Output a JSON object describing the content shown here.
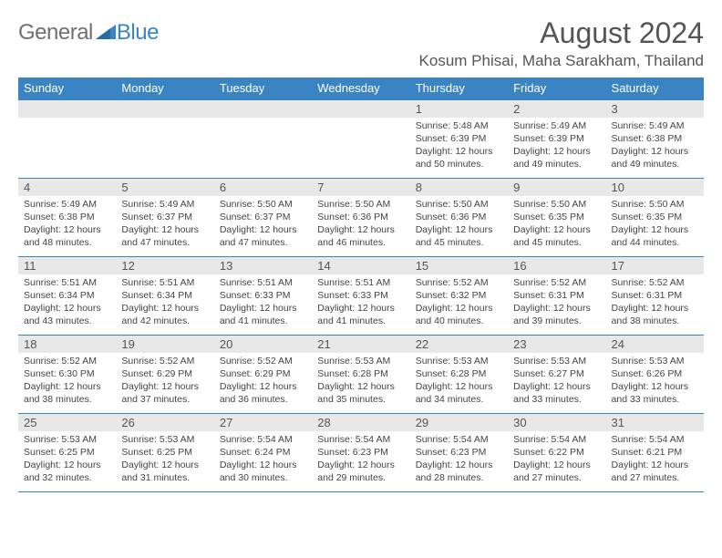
{
  "logo": {
    "text1": "General",
    "text2": "Blue",
    "color_general": "#707070",
    "color_blue": "#3b84c4"
  },
  "header": {
    "month_title": "August 2024",
    "location": "Kosum Phisai, Maha Sarakham, Thailand"
  },
  "style": {
    "header_bg": "#3b84c4",
    "header_fg": "#ffffff",
    "daynum_bg": "#e8e8e8",
    "border_color": "#3b84c4",
    "text_color": "#444444"
  },
  "daynames": [
    "Sunday",
    "Monday",
    "Tuesday",
    "Wednesday",
    "Thursday",
    "Friday",
    "Saturday"
  ],
  "weeks": [
    [
      {
        "n": "",
        "t": ""
      },
      {
        "n": "",
        "t": ""
      },
      {
        "n": "",
        "t": ""
      },
      {
        "n": "",
        "t": ""
      },
      {
        "n": "1",
        "t": "Sunrise: 5:48 AM\nSunset: 6:39 PM\nDaylight: 12 hours and 50 minutes."
      },
      {
        "n": "2",
        "t": "Sunrise: 5:49 AM\nSunset: 6:39 PM\nDaylight: 12 hours and 49 minutes."
      },
      {
        "n": "3",
        "t": "Sunrise: 5:49 AM\nSunset: 6:38 PM\nDaylight: 12 hours and 49 minutes."
      }
    ],
    [
      {
        "n": "4",
        "t": "Sunrise: 5:49 AM\nSunset: 6:38 PM\nDaylight: 12 hours and 48 minutes."
      },
      {
        "n": "5",
        "t": "Sunrise: 5:49 AM\nSunset: 6:37 PM\nDaylight: 12 hours and 47 minutes."
      },
      {
        "n": "6",
        "t": "Sunrise: 5:50 AM\nSunset: 6:37 PM\nDaylight: 12 hours and 47 minutes."
      },
      {
        "n": "7",
        "t": "Sunrise: 5:50 AM\nSunset: 6:36 PM\nDaylight: 12 hours and 46 minutes."
      },
      {
        "n": "8",
        "t": "Sunrise: 5:50 AM\nSunset: 6:36 PM\nDaylight: 12 hours and 45 minutes."
      },
      {
        "n": "9",
        "t": "Sunrise: 5:50 AM\nSunset: 6:35 PM\nDaylight: 12 hours and 45 minutes."
      },
      {
        "n": "10",
        "t": "Sunrise: 5:50 AM\nSunset: 6:35 PM\nDaylight: 12 hours and 44 minutes."
      }
    ],
    [
      {
        "n": "11",
        "t": "Sunrise: 5:51 AM\nSunset: 6:34 PM\nDaylight: 12 hours and 43 minutes."
      },
      {
        "n": "12",
        "t": "Sunrise: 5:51 AM\nSunset: 6:34 PM\nDaylight: 12 hours and 42 minutes."
      },
      {
        "n": "13",
        "t": "Sunrise: 5:51 AM\nSunset: 6:33 PM\nDaylight: 12 hours and 41 minutes."
      },
      {
        "n": "14",
        "t": "Sunrise: 5:51 AM\nSunset: 6:33 PM\nDaylight: 12 hours and 41 minutes."
      },
      {
        "n": "15",
        "t": "Sunrise: 5:52 AM\nSunset: 6:32 PM\nDaylight: 12 hours and 40 minutes."
      },
      {
        "n": "16",
        "t": "Sunrise: 5:52 AM\nSunset: 6:31 PM\nDaylight: 12 hours and 39 minutes."
      },
      {
        "n": "17",
        "t": "Sunrise: 5:52 AM\nSunset: 6:31 PM\nDaylight: 12 hours and 38 minutes."
      }
    ],
    [
      {
        "n": "18",
        "t": "Sunrise: 5:52 AM\nSunset: 6:30 PM\nDaylight: 12 hours and 38 minutes."
      },
      {
        "n": "19",
        "t": "Sunrise: 5:52 AM\nSunset: 6:29 PM\nDaylight: 12 hours and 37 minutes."
      },
      {
        "n": "20",
        "t": "Sunrise: 5:52 AM\nSunset: 6:29 PM\nDaylight: 12 hours and 36 minutes."
      },
      {
        "n": "21",
        "t": "Sunrise: 5:53 AM\nSunset: 6:28 PM\nDaylight: 12 hours and 35 minutes."
      },
      {
        "n": "22",
        "t": "Sunrise: 5:53 AM\nSunset: 6:28 PM\nDaylight: 12 hours and 34 minutes."
      },
      {
        "n": "23",
        "t": "Sunrise: 5:53 AM\nSunset: 6:27 PM\nDaylight: 12 hours and 33 minutes."
      },
      {
        "n": "24",
        "t": "Sunrise: 5:53 AM\nSunset: 6:26 PM\nDaylight: 12 hours and 33 minutes."
      }
    ],
    [
      {
        "n": "25",
        "t": "Sunrise: 5:53 AM\nSunset: 6:25 PM\nDaylight: 12 hours and 32 minutes."
      },
      {
        "n": "26",
        "t": "Sunrise: 5:53 AM\nSunset: 6:25 PM\nDaylight: 12 hours and 31 minutes."
      },
      {
        "n": "27",
        "t": "Sunrise: 5:54 AM\nSunset: 6:24 PM\nDaylight: 12 hours and 30 minutes."
      },
      {
        "n": "28",
        "t": "Sunrise: 5:54 AM\nSunset: 6:23 PM\nDaylight: 12 hours and 29 minutes."
      },
      {
        "n": "29",
        "t": "Sunrise: 5:54 AM\nSunset: 6:23 PM\nDaylight: 12 hours and 28 minutes."
      },
      {
        "n": "30",
        "t": "Sunrise: 5:54 AM\nSunset: 6:22 PM\nDaylight: 12 hours and 27 minutes."
      },
      {
        "n": "31",
        "t": "Sunrise: 5:54 AM\nSunset: 6:21 PM\nDaylight: 12 hours and 27 minutes."
      }
    ]
  ]
}
